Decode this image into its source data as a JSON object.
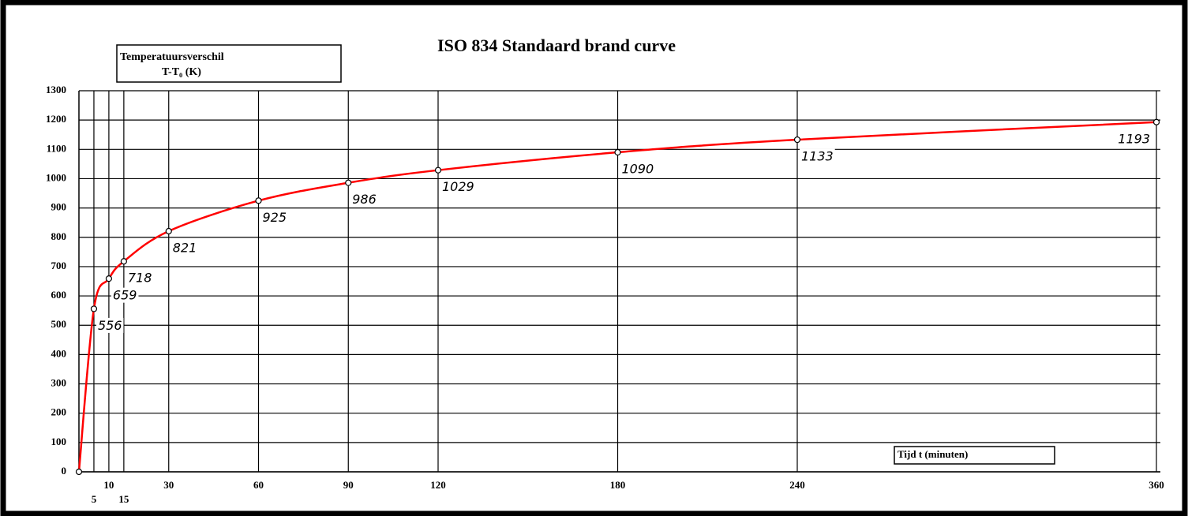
{
  "chart_data": {
    "type": "line",
    "title": "ISO 834  Standaard brand curve",
    "y_label": [
      "Temperatuursverschil",
      "T-T₀ (K)"
    ],
    "x_label": "Tijd t (minuten)",
    "x": [
      0,
      5,
      10,
      15,
      30,
      60,
      90,
      120,
      180,
      240,
      360
    ],
    "series": [
      {
        "color": "#ff0000",
        "values": [
          0,
          556,
          659,
          718,
          821,
          925,
          986,
          1029,
          1090,
          1133,
          1193
        ]
      }
    ],
    "xlim": [
      0,
      360
    ],
    "xticks": [
      5,
      10,
      15,
      30,
      60,
      90,
      120,
      180,
      240,
      360
    ],
    "ylim": [
      0,
      1300
    ],
    "yticks": [
      0,
      100,
      200,
      300,
      400,
      500,
      600,
      700,
      800,
      900,
      1000,
      1100,
      1200,
      1300
    ],
    "grid": true
  }
}
